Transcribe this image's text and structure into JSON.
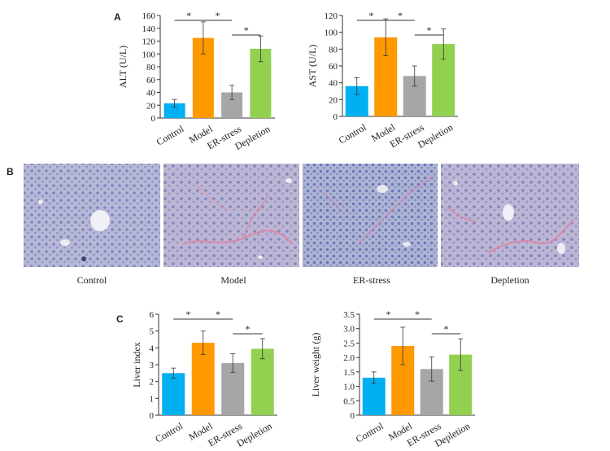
{
  "panels": {
    "A": "A",
    "B": "B",
    "C": "C"
  },
  "colors": {
    "control": "#00b0f0",
    "model": "#ff9900",
    "er_stress": "#a6a6a6",
    "depletion": "#92d050"
  },
  "histology": {
    "captions": [
      "Control",
      "Model",
      "ER-stress",
      "Depletion"
    ]
  },
  "chart_data": [
    {
      "type": "bar",
      "panel": "A",
      "ylabel": "ALT (U/L)",
      "ylim": [
        0,
        160
      ],
      "yticks": [
        0,
        20,
        40,
        60,
        80,
        100,
        120,
        140,
        160
      ],
      "categories": [
        "Control",
        "Model",
        "ER-stress",
        "Depletion"
      ],
      "values": [
        23,
        125,
        40,
        108
      ],
      "errors": [
        6,
        25,
        11,
        20
      ],
      "significance": [
        {
          "from": 0,
          "to": 1,
          "label": "*"
        },
        {
          "from": 1,
          "to": 2,
          "label": "*"
        },
        {
          "from": 2,
          "to": 3,
          "label": "*"
        }
      ]
    },
    {
      "type": "bar",
      "panel": "A",
      "ylabel": "AST (U/L)",
      "ylim": [
        0,
        120
      ],
      "yticks": [
        0,
        20,
        40,
        60,
        80,
        100,
        120
      ],
      "categories": [
        "Control",
        "Model",
        "ER-stress",
        "Depletion"
      ],
      "values": [
        36,
        94,
        48,
        86
      ],
      "errors": [
        10,
        22,
        12,
        18
      ],
      "significance": [
        {
          "from": 0,
          "to": 1,
          "label": "*"
        },
        {
          "from": 1,
          "to": 2,
          "label": "*"
        },
        {
          "from": 2,
          "to": 3,
          "label": "*"
        }
      ]
    },
    {
      "type": "bar",
      "panel": "C",
      "ylabel": "Liver index",
      "ylim": [
        0,
        6
      ],
      "yticks": [
        0,
        1,
        2,
        3,
        4,
        5,
        6
      ],
      "categories": [
        "Control",
        "Model",
        "ER-stress",
        "Depletion"
      ],
      "values": [
        2.5,
        4.3,
        3.1,
        3.95
      ],
      "errors": [
        0.3,
        0.7,
        0.55,
        0.6
      ],
      "significance": [
        {
          "from": 0,
          "to": 1,
          "label": "*"
        },
        {
          "from": 1,
          "to": 2,
          "label": "*"
        },
        {
          "from": 2,
          "to": 3,
          "label": "*"
        }
      ]
    },
    {
      "type": "bar",
      "panel": "C",
      "ylabel": "Liver weight (g)",
      "ylim": [
        0,
        3.5
      ],
      "yticks": [
        "0",
        "0.5",
        "1.0",
        "1.5",
        "2.0",
        "2.5",
        "3.0",
        "3.5"
      ],
      "categories": [
        "Control",
        "Model",
        "ER-stress",
        "Depletion"
      ],
      "values": [
        1.3,
        2.4,
        1.6,
        2.1
      ],
      "errors": [
        0.2,
        0.65,
        0.42,
        0.55
      ],
      "significance": [
        {
          "from": 0,
          "to": 1,
          "label": "*"
        },
        {
          "from": 1,
          "to": 2,
          "label": "*"
        },
        {
          "from": 2,
          "to": 3,
          "label": "*"
        }
      ]
    }
  ]
}
